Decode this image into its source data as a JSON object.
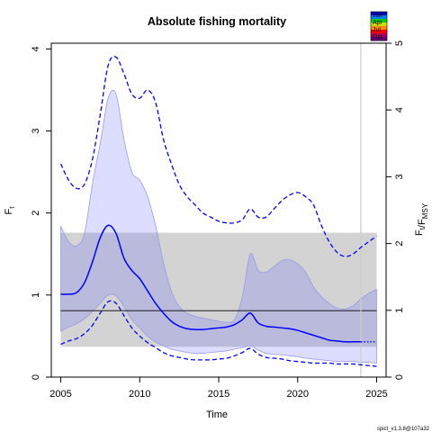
{
  "colors": {
    "estimate": "#0000ff",
    "ci_fill": "#ccccff",
    "ci_edge": "#9999ee",
    "msy_band": "#d3d3d3",
    "overlap": "#b8b8d6",
    "ref_line": "#000000",
    "vline": "#cccccc",
    "month_scale": [
      "#0000cd",
      "#0080ff",
      "#00cc00",
      "#ccdd00",
      "#ff8800",
      "#ff0000",
      "#b00060",
      "#6a0080"
    ]
  },
  "chart_data": {
    "type": "line",
    "title": "Absolute fishing mortality",
    "xlabel": "Time",
    "ylabel": "F_t",
    "ylabel_right": "F_t/F_MSY",
    "xlim": [
      2004.4,
      2025.6
    ],
    "ylim": [
      0,
      4.07
    ],
    "ylim_right": [
      0,
      5.0
    ],
    "x_ticks": [
      "2005",
      "2010",
      "2015",
      "2020",
      "2025"
    ],
    "y_ticks": [
      "0",
      "1",
      "2",
      "3",
      "4"
    ],
    "y_ticks_right": [
      "0",
      "1",
      "2",
      "3",
      "4",
      "5"
    ],
    "grid": false,
    "legend_title": "",
    "legend_position": "top-right",
    "legend_labels": [
      "Jan",
      "Apr",
      "Jul",
      "Oct"
    ],
    "footnote": "spict_v1.3.8@107a32",
    "fmsy": 0.81,
    "fmsy_band": [
      0.37,
      1.76
    ],
    "current_time": 2024.0,
    "forecast_start": 2024.0,
    "x": [
      2005,
      2005.5,
      2006,
      2006.5,
      2007,
      2007.5,
      2008,
      2008.5,
      2009,
      2009.5,
      2010,
      2010.5,
      2011,
      2011.5,
      2012,
      2012.5,
      2013,
      2013.5,
      2014,
      2014.5,
      2015,
      2015.5,
      2016,
      2016.5,
      2017,
      2017.5,
      2018,
      2018.5,
      2019,
      2019.5,
      2020,
      2020.5,
      2021,
      2021.5,
      2022,
      2022.5,
      2023,
      2023.5,
      2024,
      2024.5,
      2025
    ],
    "series": [
      {
        "name": "",
        "estimate": [
          1.01,
          1.01,
          1.03,
          1.15,
          1.4,
          1.7,
          1.85,
          1.75,
          1.45,
          1.3,
          1.2,
          1.05,
          0.9,
          0.78,
          0.68,
          0.62,
          0.59,
          0.58,
          0.58,
          0.59,
          0.6,
          0.61,
          0.64,
          0.7,
          0.78,
          0.66,
          0.62,
          0.61,
          0.6,
          0.59,
          0.57,
          0.54,
          0.51,
          0.48,
          0.45,
          0.44,
          0.43,
          0.43,
          0.43,
          0.43,
          0.43
        ],
        "ci_upper": [
          1.84,
          1.65,
          1.6,
          1.75,
          2.35,
          2.85,
          3.4,
          3.45,
          2.9,
          2.5,
          2.4,
          2.2,
          1.85,
          1.4,
          1.05,
          0.86,
          0.78,
          0.74,
          0.72,
          0.7,
          0.68,
          0.67,
          0.7,
          0.98,
          1.5,
          1.3,
          1.28,
          1.35,
          1.42,
          1.43,
          1.38,
          1.28,
          1.1,
          0.98,
          0.9,
          0.84,
          0.83,
          0.87,
          0.95,
          1.02,
          1.07
        ],
        "ci_lower": [
          0.56,
          0.61,
          0.65,
          0.71,
          0.8,
          0.9,
          1.0,
          0.99,
          0.86,
          0.7,
          0.6,
          0.5,
          0.43,
          0.38,
          0.34,
          0.32,
          0.3,
          0.29,
          0.29,
          0.3,
          0.31,
          0.32,
          0.34,
          0.36,
          0.38,
          0.33,
          0.29,
          0.28,
          0.27,
          0.26,
          0.25,
          0.23,
          0.22,
          0.21,
          0.2,
          0.19,
          0.19,
          0.19,
          0.18,
          0.18,
          0.17
        ],
        "dashed_upper": [
          2.6,
          2.4,
          2.3,
          2.35,
          2.65,
          3.2,
          3.8,
          3.9,
          3.7,
          3.45,
          3.4,
          3.5,
          3.35,
          2.9,
          2.6,
          2.35,
          2.2,
          2.1,
          2.0,
          1.95,
          1.9,
          1.88,
          1.88,
          1.92,
          2.05,
          1.95,
          1.95,
          2.05,
          2.15,
          2.22,
          2.25,
          2.2,
          2.1,
          1.85,
          1.65,
          1.52,
          1.47,
          1.5,
          1.58,
          1.65,
          1.72
        ],
        "dashed_lower": [
          0.4,
          0.44,
          0.47,
          0.53,
          0.63,
          0.78,
          0.92,
          0.9,
          0.75,
          0.6,
          0.5,
          0.42,
          0.36,
          0.3,
          0.26,
          0.24,
          0.22,
          0.21,
          0.21,
          0.21,
          0.22,
          0.23,
          0.26,
          0.3,
          0.35,
          0.28,
          0.24,
          0.23,
          0.22,
          0.2,
          0.19,
          0.18,
          0.17,
          0.17,
          0.17,
          0.16,
          0.16,
          0.16,
          0.15,
          0.14,
          0.13
        ]
      }
    ]
  }
}
